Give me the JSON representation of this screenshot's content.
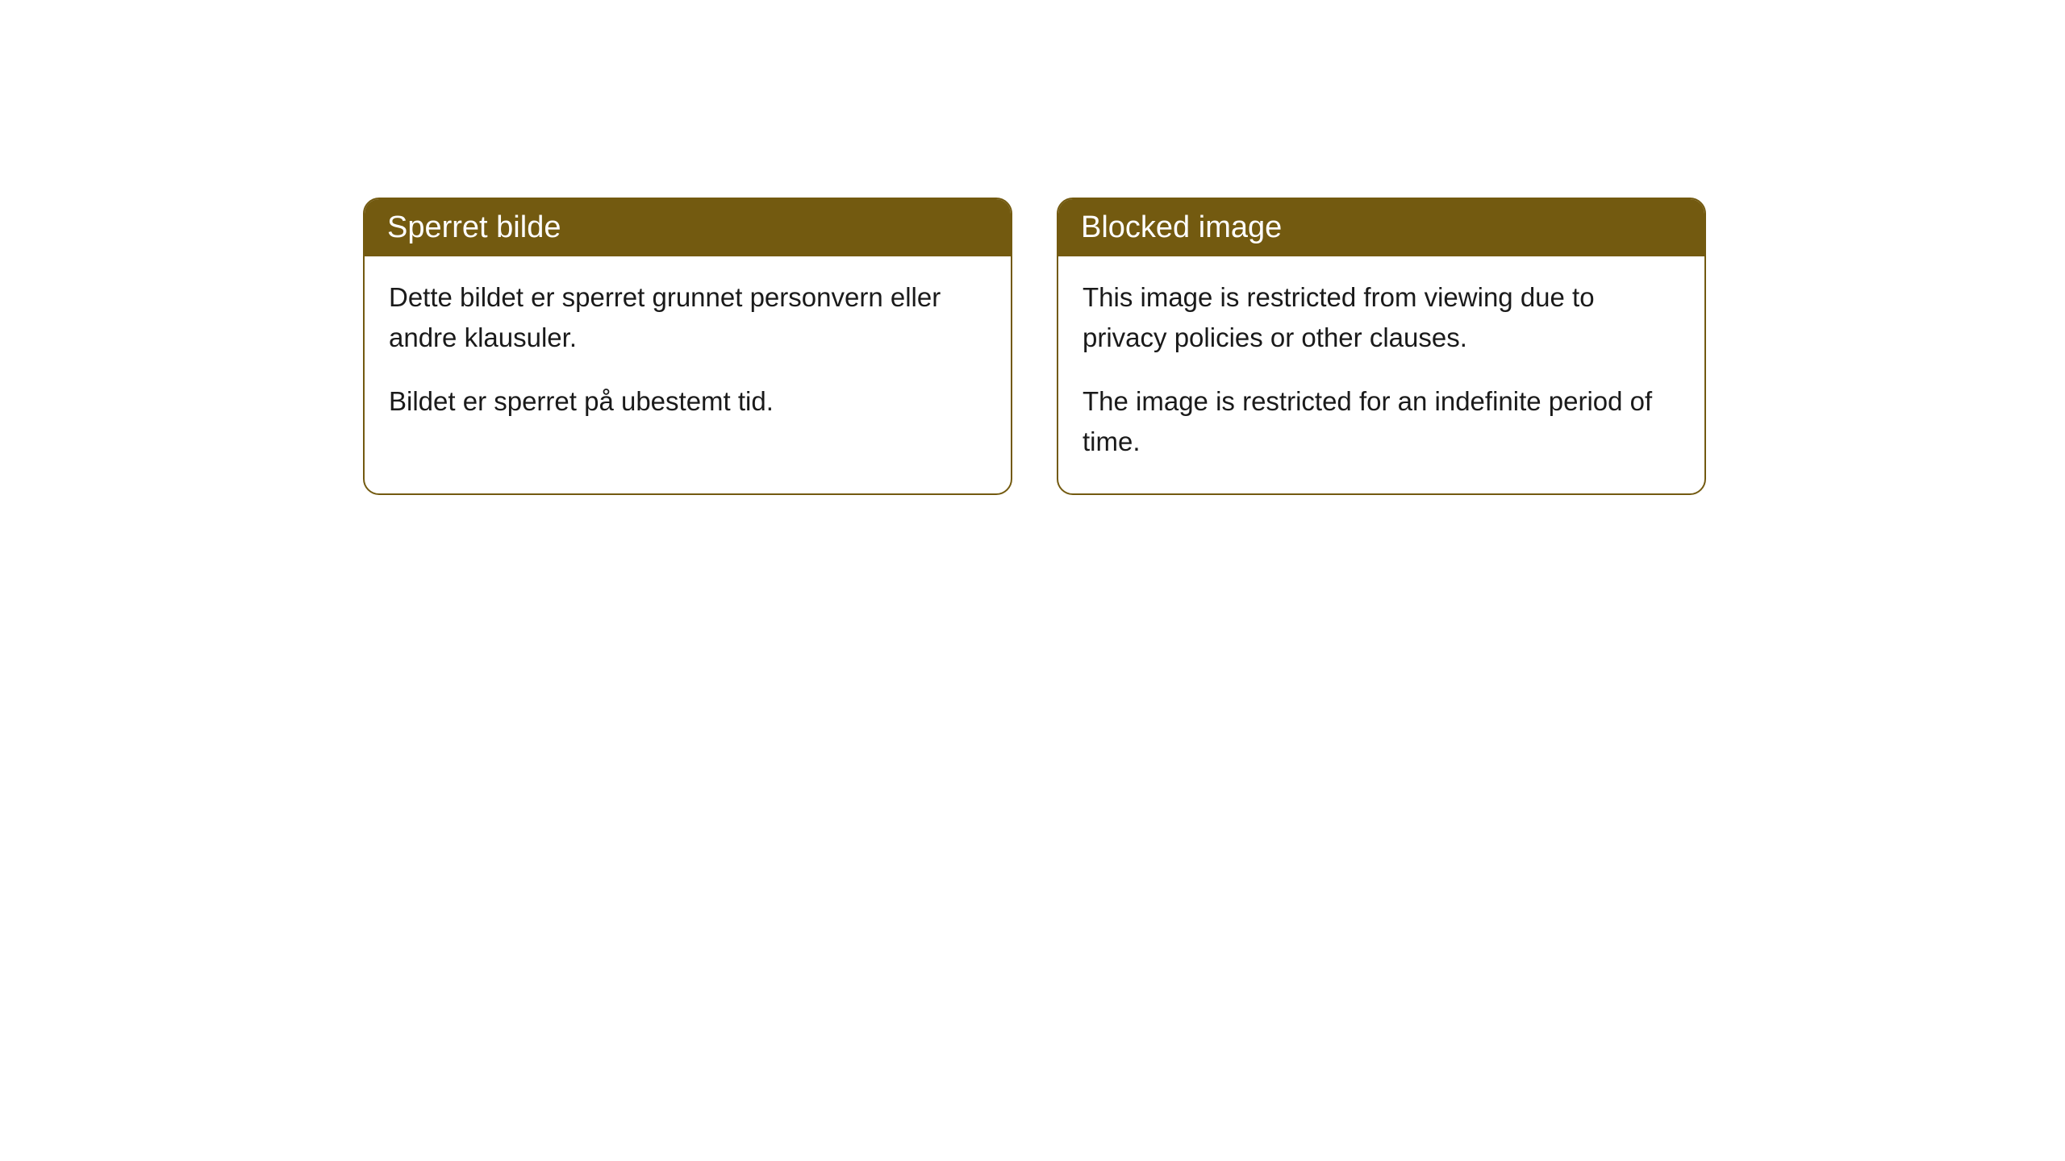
{
  "cards": [
    {
      "title": "Sperret bilde",
      "paragraph1": "Dette bildet er sperret grunnet personvern eller andre klausuler.",
      "paragraph2": "Bildet er sperret på ubestemt tid."
    },
    {
      "title": "Blocked image",
      "paragraph1": "This image is restricted from viewing due to privacy policies or other clauses.",
      "paragraph2": "The image is restricted for an indefinite period of time."
    }
  ],
  "styling": {
    "header_bg_color": "#735a10",
    "header_text_color": "#ffffff",
    "border_color": "#735a10",
    "body_text_color": "#1a1a1a",
    "card_bg_color": "#ffffff",
    "page_bg_color": "#ffffff",
    "border_radius": 20,
    "header_fontsize": 38,
    "body_fontsize": 33
  }
}
